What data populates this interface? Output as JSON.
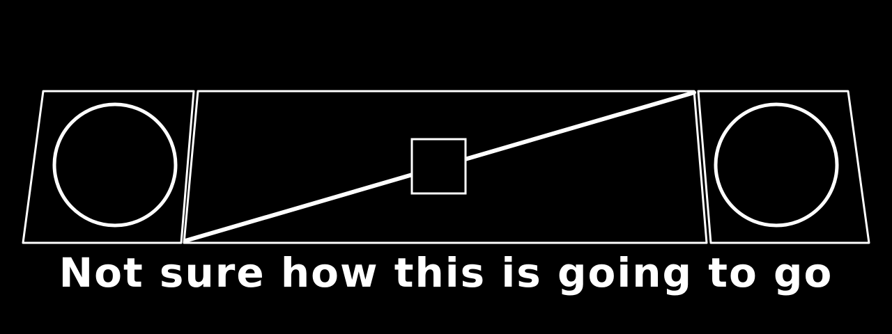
{
  "caption": "Not sure how this is going to go",
  "colors": {
    "background": "#000000",
    "stroke": "#ffffff"
  }
}
